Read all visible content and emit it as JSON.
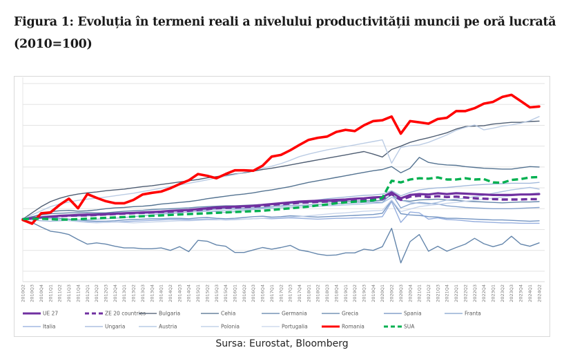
{
  "header": {
    "title": "Figura 1: Evoluția în termeni reali a nivelului productivității muncii pe oră lucrată (2010=100)"
  },
  "footer": {
    "source": "Sursa: Eurostat, Bloomberg"
  },
  "chart_data": {
    "type": "line",
    "title": "Figura 1: Evoluția în termeni reali a nivelului productivității muncii pe oră lucrată (2010=100)",
    "xlabel": "",
    "ylabel": "",
    "ylim": [
      85,
      134
    ],
    "grid": true,
    "legend_position": "bottom",
    "x": [
      "2010Q2",
      "2010Q3",
      "2010Q4",
      "2011Q1",
      "2011Q2",
      "2011Q3",
      "2011Q4",
      "2012Q1",
      "2012Q2",
      "2012Q3",
      "2012Q4",
      "2013Q1",
      "2013Q2",
      "2013Q3",
      "2013Q4",
      "2014Q1",
      "2014Q2",
      "2014Q3",
      "2014Q4",
      "2015Q1",
      "2015Q2",
      "2015Q3",
      "2015Q4",
      "2016Q1",
      "2016Q2",
      "2016Q3",
      "2016Q4",
      "2017Q1",
      "2017Q2",
      "2017Q3",
      "2017Q4",
      "2018Q1",
      "2018Q2",
      "2018Q3",
      "2018Q4",
      "2019Q1",
      "2019Q2",
      "2019Q3",
      "2019Q4",
      "2020Q1",
      "2020Q2",
      "2020Q3",
      "2020Q4",
      "2021Q1",
      "2021Q2",
      "2021Q3",
      "2021Q4",
      "2022Q1",
      "2022Q2",
      "2022Q3",
      "2022Q4",
      "2023Q1",
      "2023Q2",
      "2023Q3",
      "2023Q4",
      "2024Q1",
      "2024Q2"
    ],
    "series": [
      {
        "name": "UE 27",
        "color": "#7030a0",
        "style": "solid-thick",
        "values": [
          100,
          100.2,
          100.4,
          100.6,
          100.8,
          100.9,
          101.0,
          101.1,
          101.1,
          101.2,
          101.3,
          101.4,
          101.5,
          101.6,
          101.7,
          101.8,
          102.0,
          102.1,
          102.2,
          102.4,
          102.6,
          102.8,
          102.9,
          103.0,
          103.1,
          103.2,
          103.4,
          103.6,
          103.8,
          104.0,
          104.2,
          104.3,
          104.4,
          104.5,
          104.6,
          104.7,
          104.9,
          105.0,
          105.2,
          105.3,
          106.4,
          105.0,
          105.8,
          106.0,
          105.9,
          106.2,
          106.0,
          106.2,
          106.1,
          106.0,
          105.9,
          105.8,
          105.8,
          105.8,
          105.9,
          105.9,
          106.0
        ]
      },
      {
        "name": "ZE 20 countries",
        "color": "#7030a0",
        "style": "dashed-thick",
        "values": [
          100,
          100.2,
          100.4,
          100.6,
          100.7,
          100.8,
          100.9,
          100.9,
          101.0,
          101.1,
          101.2,
          101.3,
          101.4,
          101.5,
          101.6,
          101.7,
          101.8,
          101.9,
          102.0,
          102.2,
          102.4,
          102.6,
          102.7,
          102.8,
          102.9,
          103.0,
          103.2,
          103.4,
          103.6,
          103.7,
          103.9,
          104.0,
          104.1,
          104.2,
          104.3,
          104.4,
          104.5,
          104.6,
          104.8,
          104.9,
          106.0,
          104.6,
          105.4,
          105.6,
          105.3,
          105.5,
          105.3,
          105.4,
          105.2,
          105.0,
          104.9,
          104.8,
          104.7,
          104.7,
          104.7,
          104.8,
          104.8
        ]
      },
      {
        "name": "Bulgaria",
        "color": "#44546a",
        "style": "solid",
        "values": [
          100,
          101.5,
          103.0,
          104.2,
          105.0,
          105.6,
          106.0,
          106.3,
          106.5,
          106.8,
          107.0,
          107.2,
          107.5,
          107.8,
          108.0,
          108.3,
          108.6,
          108.9,
          109.2,
          109.5,
          109.9,
          110.2,
          110.5,
          110.8,
          111.1,
          111.5,
          111.9,
          112.2,
          112.6,
          113.0,
          113.4,
          113.8,
          114.2,
          114.6,
          115.0,
          115.4,
          115.8,
          116.2,
          115.6,
          114.9,
          116.7,
          117.5,
          118.4,
          119.0,
          119.5,
          120.1,
          120.7,
          121.6,
          122.2,
          122.3,
          122.4,
          122.8,
          123.0,
          123.2,
          123.2,
          123.4,
          123.5
        ]
      },
      {
        "name": "Cehia",
        "color": "#4a6a8a",
        "style": "solid",
        "values": [
          100,
          100.5,
          101.2,
          101.8,
          102.0,
          102.1,
          101.9,
          102.0,
          102.2,
          102.5,
          102.7,
          102.8,
          103.0,
          103.1,
          103.3,
          103.6,
          103.8,
          104.0,
          104.2,
          104.5,
          104.9,
          105.2,
          105.5,
          105.8,
          106.0,
          106.3,
          106.7,
          107.0,
          107.4,
          107.8,
          108.3,
          108.8,
          109.2,
          109.6,
          110.0,
          110.4,
          110.8,
          111.2,
          111.6,
          111.9,
          112.6,
          111.1,
          112.2,
          114.8,
          113.6,
          113.2,
          113.0,
          112.9,
          112.6,
          112.4,
          112.2,
          112.1,
          112.0,
          112.0,
          112.3,
          112.6,
          112.5
        ]
      },
      {
        "name": "Germania",
        "color": "#5b7ea6",
        "style": "solid",
        "values": [
          100,
          100.6,
          101.0,
          101.3,
          101.4,
          101.5,
          101.5,
          101.6,
          101.5,
          101.5,
          101.7,
          101.9,
          102.0,
          102.1,
          102.3,
          102.4,
          102.5,
          102.6,
          102.7,
          102.9,
          103.0,
          103.1,
          103.2,
          103.2,
          103.3,
          103.4,
          103.5,
          103.6,
          103.7,
          103.8,
          103.9,
          104.0,
          104.1,
          104.1,
          104.2,
          104.3,
          104.3,
          104.4,
          104.4,
          104.5,
          105.8,
          104.5,
          104.3,
          104.6,
          104.7,
          104.8,
          104.6,
          104.5,
          104.3,
          104.2,
          104.1,
          104.0,
          103.9,
          104.0,
          104.1,
          104.1,
          104.2
        ]
      },
      {
        "name": "Grecia",
        "color": "#5b7ea6",
        "style": "solid",
        "values": [
          99.9,
          99.2,
          98.1,
          97.1,
          96.8,
          96.3,
          95.1,
          94.0,
          94.3,
          94.0,
          93.5,
          93.1,
          93.1,
          92.9,
          92.9,
          93.1,
          92.5,
          93.4,
          92.2,
          94.9,
          94.7,
          93.8,
          93.5,
          92.0,
          92.0,
          92.6,
          93.2,
          92.8,
          93.2,
          93.7,
          92.6,
          92.2,
          91.6,
          91.3,
          91.4,
          91.9,
          91.9,
          92.8,
          92.5,
          93.4,
          97.8,
          89.5,
          94.6,
          96.3,
          92.3,
          93.5,
          92.3,
          93.2,
          94.0,
          95.4,
          94.1,
          93.4,
          94.0,
          95.9,
          94.0,
          93.5,
          94.3
        ]
      },
      {
        "name": "Spania",
        "color": "#6c8ebf",
        "style": "solid",
        "values": [
          100,
          100.3,
          100.5,
          100.4,
          100.2,
          100.0,
          99.8,
          99.6,
          99.5,
          99.5,
          99.6,
          99.8,
          99.9,
          100.0,
          100.1,
          100.1,
          100.2,
          100.2,
          100.1,
          100.3,
          100.4,
          100.2,
          100.1,
          100.2,
          100.4,
          100.6,
          100.7,
          100.5,
          100.6,
          100.8,
          100.7,
          100.6,
          100.5,
          100.6,
          100.7,
          100.8,
          100.9,
          101.0,
          101.1,
          101.4,
          104.5,
          101.3,
          101.0,
          100.9,
          100.6,
          100.5,
          100.2,
          100.2,
          100.1,
          100.0,
          99.9,
          99.8,
          99.8,
          99.7,
          99.6,
          99.5,
          99.6
        ]
      },
      {
        "name": "Franta",
        "color": "#7f9fcc",
        "style": "solid",
        "values": [
          100,
          100.3,
          100.6,
          100.8,
          100.8,
          100.7,
          100.7,
          100.8,
          100.9,
          101.0,
          101.2,
          101.3,
          101.5,
          101.6,
          101.7,
          101.8,
          101.9,
          102.0,
          102.1,
          102.2,
          102.3,
          102.4,
          102.5,
          102.5,
          102.6,
          102.7,
          102.8,
          103.0,
          103.1,
          103.2,
          103.3,
          103.4,
          103.5,
          103.6,
          103.7,
          103.8,
          103.9,
          104.0,
          104.1,
          104.0,
          106.1,
          102.7,
          103.6,
          104.0,
          103.8,
          103.6,
          103.2,
          103.0,
          102.8,
          102.7,
          102.6,
          102.5,
          102.5,
          102.5,
          102.6,
          102.7,
          102.8
        ]
      },
      {
        "name": "Italia",
        "color": "#8faadc",
        "style": "solid",
        "values": [
          100,
          100.2,
          100.3,
          100.1,
          99.9,
          99.7,
          99.5,
          99.3,
          99.2,
          99.2,
          99.3,
          99.4,
          99.5,
          99.6,
          99.7,
          99.8,
          99.9,
          99.9,
          99.8,
          99.9,
          100.0,
          99.9,
          99.8,
          99.9,
          100.0,
          100.1,
          100.2,
          100.1,
          100.2,
          100.3,
          100.2,
          100.1,
          100.0,
          100.1,
          100.2,
          100.2,
          100.3,
          100.3,
          100.4,
          100.6,
          104.2,
          99.2,
          101.7,
          101.5,
          100.0,
          100.3,
          99.9,
          99.8,
          99.6,
          99.4,
          99.3,
          99.2,
          99.1,
          99.1,
          99.0,
          99.0,
          99.0
        ]
      },
      {
        "name": "Ungaria",
        "color": "#9db5d9",
        "style": "solid",
        "values": [
          100,
          99.8,
          99.6,
          99.5,
          99.6,
          99.7,
          99.8,
          99.9,
          100.0,
          100.1,
          100.2,
          100.4,
          100.6,
          100.8,
          101.0,
          101.2,
          101.3,
          101.5,
          101.7,
          101.9,
          102.0,
          101.8,
          101.6,
          101.8,
          102.0,
          102.3,
          102.6,
          102.9,
          103.2,
          103.6,
          104.0,
          104.3,
          104.6,
          104.9,
          105.1,
          105.3,
          105.5,
          105.7,
          105.8,
          106.0,
          106.8,
          105.6,
          106.4,
          107.0,
          107.3,
          107.5,
          107.6,
          107.8,
          108.0,
          108.2,
          108.3,
          108.4,
          108.5,
          108.6,
          108.6,
          108.6,
          108.8
        ]
      },
      {
        "name": "Austria",
        "color": "#a9c0e0",
        "style": "solid",
        "values": [
          100,
          100.2,
          100.4,
          100.6,
          100.7,
          100.8,
          100.9,
          101.0,
          101.0,
          101.0,
          101.1,
          101.2,
          101.3,
          101.3,
          101.4,
          101.5,
          101.5,
          101.6,
          101.7,
          101.8,
          101.9,
          102.0,
          102.1,
          102.2,
          102.3,
          102.4,
          102.5,
          102.6,
          102.7,
          102.8,
          102.9,
          103.0,
          103.1,
          103.2,
          103.3,
          103.4,
          103.5,
          103.6,
          103.8,
          103.9,
          105.2,
          104.5,
          104.0,
          103.8,
          103.6,
          104.0,
          104.6,
          104.8,
          105.0,
          105.4,
          105.7,
          106.2,
          106.6,
          107.0,
          107.3,
          107.6,
          107.2
        ]
      },
      {
        "name": "Polonia",
        "color": "#b7c9e3",
        "style": "solid",
        "values": [
          100,
          101.0,
          102.0,
          103.0,
          103.6,
          104.1,
          104.5,
          104.8,
          105.0,
          105.3,
          105.6,
          105.9,
          106.2,
          106.6,
          107.0,
          107.4,
          107.8,
          108.2,
          108.6,
          109.0,
          109.4,
          109.9,
          110.3,
          110.7,
          111.2,
          111.7,
          112.2,
          112.7,
          113.3,
          114.1,
          115.0,
          115.6,
          116.1,
          116.6,
          117.0,
          117.4,
          117.8,
          118.2,
          118.6,
          119.0,
          113.4,
          117.2,
          117.6,
          117.8,
          118.4,
          119.3,
          120.2,
          121.3,
          122.0,
          122.6,
          121.4,
          121.8,
          122.3,
          122.6,
          123.0,
          123.6,
          124.6
        ]
      },
      {
        "name": "Portugalia",
        "color": "#c5d3ea",
        "style": "solid",
        "values": [
          100,
          100.1,
          100.2,
          100.0,
          99.8,
          99.6,
          99.4,
          99.2,
          99.1,
          99.2,
          99.3,
          99.2,
          99.1,
          99.2,
          99.3,
          99.4,
          99.5,
          99.6,
          99.6,
          99.7,
          99.8,
          99.8,
          99.9,
          100.0,
          100.0,
          100.1,
          100.2,
          100.3,
          100.4,
          100.5,
          100.6,
          100.8,
          101.0,
          101.2,
          101.4,
          101.5,
          101.7,
          101.9,
          102.0,
          102.1,
          104.6,
          101.8,
          102.4,
          103.0,
          103.3,
          103.5,
          103.8,
          104.0,
          104.3,
          104.5,
          104.8,
          105.0,
          105.3,
          105.6,
          105.9,
          106.1,
          106.3
        ]
      },
      {
        "name": "Romania",
        "color": "#ff0000",
        "style": "solid-thick",
        "values": [
          99.8,
          98.9,
          101.4,
          101.6,
          103.4,
          104.9,
          102.6,
          106.0,
          105.1,
          104.3,
          103.8,
          103.8,
          104.6,
          105.9,
          106.3,
          106.6,
          107.4,
          108.4,
          109.3,
          110.8,
          110.4,
          109.8,
          110.8,
          111.7,
          111.7,
          111.6,
          112.8,
          115.0,
          115.4,
          116.5,
          117.8,
          119.0,
          119.5,
          119.8,
          120.9,
          121.4,
          121.1,
          122.5,
          123.5,
          123.7,
          124.6,
          120.5,
          123.5,
          123.2,
          122.9,
          124.0,
          124.3,
          125.9,
          125.9,
          126.6,
          127.7,
          128.1,
          129.3,
          129.8,
          128.3,
          126.8,
          127.0
        ]
      },
      {
        "name": "SUA",
        "color": "#00b050",
        "style": "dashed-thick",
        "values": [
          100,
          100.1,
          100.1,
          100.0,
          99.9,
          99.9,
          100.0,
          100.1,
          100.2,
          100.3,
          100.4,
          100.5,
          100.6,
          100.7,
          100.8,
          100.9,
          101.0,
          101.1,
          101.2,
          101.3,
          101.4,
          101.5,
          101.6,
          101.7,
          101.8,
          101.9,
          102.0,
          102.2,
          102.4,
          102.6,
          102.8,
          103.0,
          103.3,
          103.5,
          103.8,
          104.0,
          104.2,
          104.3,
          104.5,
          105.1,
          109.2,
          108.8,
          109.5,
          109.8,
          109.7,
          110.0,
          109.5,
          109.5,
          109.8,
          109.5,
          109.6,
          108.8,
          108.7,
          109.4,
          109.6,
          110.0,
          110.1
        ]
      }
    ]
  }
}
